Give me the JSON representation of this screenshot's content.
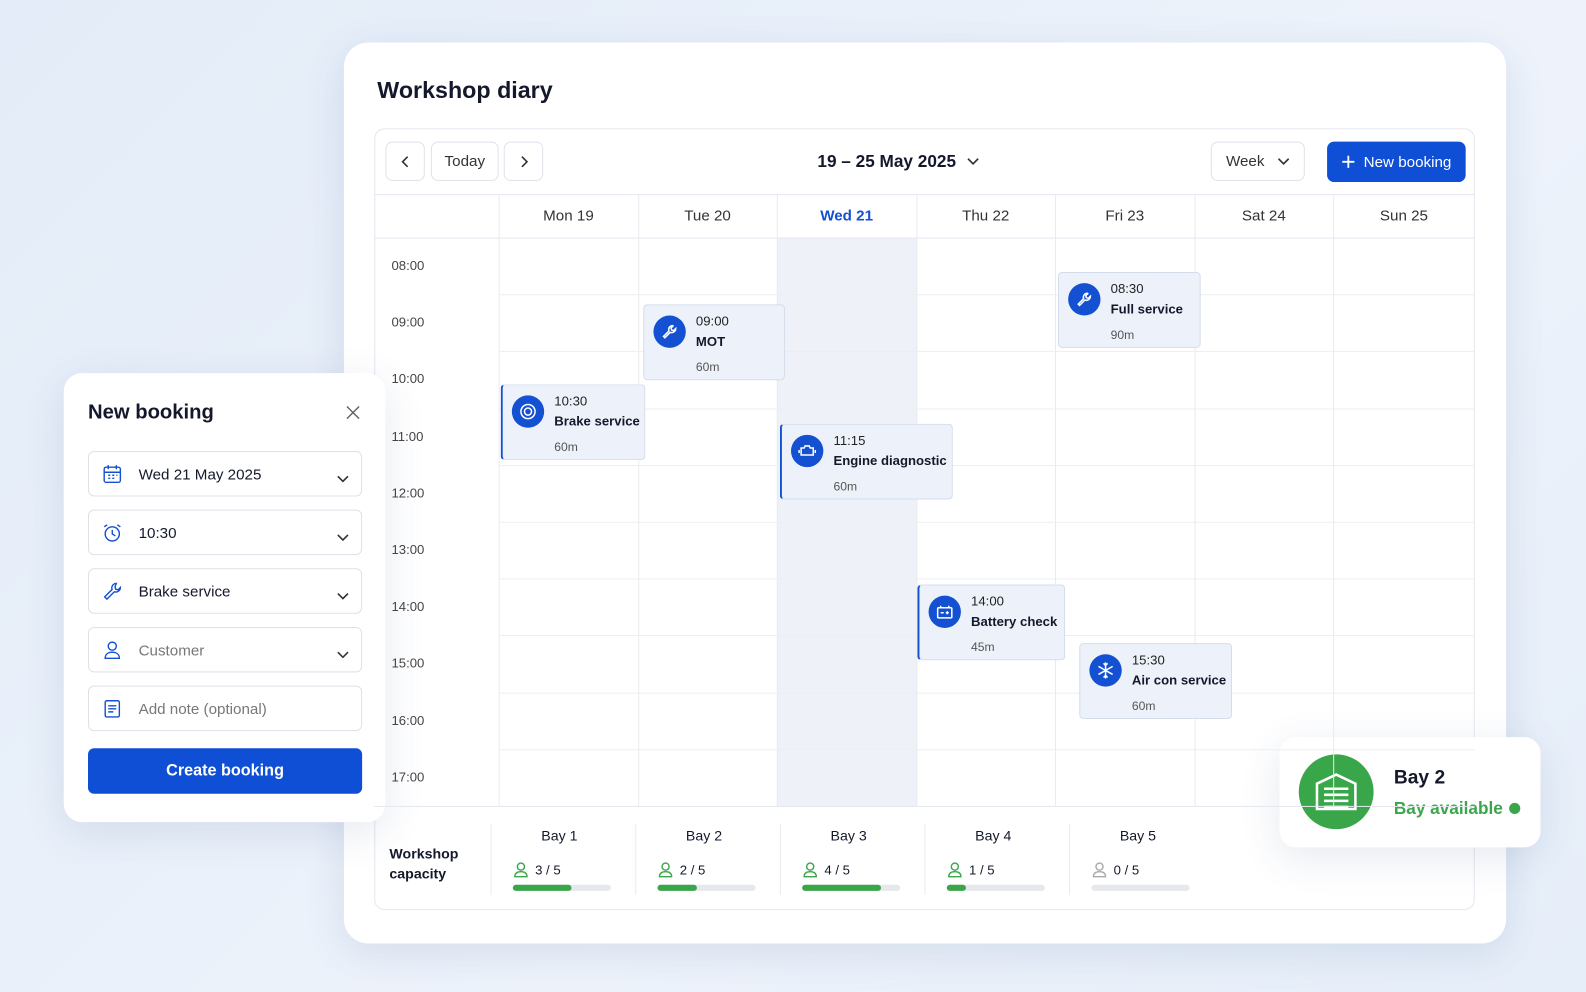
{
  "header": {
    "title": "Workshop diary"
  },
  "toolbar": {
    "today": "Today",
    "range": "19 – 25 May 2025",
    "view": "Week",
    "new_booking": "New booking"
  },
  "calendar": {
    "times": [
      "08:00",
      "09:00",
      "10:00",
      "11:00",
      "12:00",
      "13:00",
      "14:00",
      "15:00",
      "16:00",
      "17:00"
    ],
    "days": [
      {
        "label": "Mon 19",
        "events": [
          {
            "time": "10:30",
            "title": "Brake service",
            "duration": "60m"
          }
        ]
      },
      {
        "label": "Tue 20",
        "events": [
          {
            "time": "09:00",
            "title": "MOT",
            "duration": "60m"
          }
        ]
      },
      {
        "label": "Wed 21",
        "highlighted": true,
        "events": [
          {
            "time": "11:15",
            "title": "Engine diagnostic",
            "duration": "60m"
          }
        ]
      },
      {
        "label": "Thu 22",
        "events": [
          {
            "time": "14:00",
            "title": "Battery check",
            "duration": "45m"
          }
        ]
      },
      {
        "label": "Fri 23",
        "events": [
          {
            "time": "08:30",
            "title": "Full service",
            "duration": "90m"
          },
          {
            "time": "15:30",
            "title": "Air con service",
            "duration": "60m"
          }
        ]
      },
      {
        "label": "Sat 24",
        "events": []
      },
      {
        "label": "Sun 25",
        "events": []
      }
    ]
  },
  "capacity": {
    "label": "Workshop capacity",
    "bays": [
      {
        "name": "Bay 1",
        "used": 3,
        "total": 5,
        "label": "3 / 5"
      },
      {
        "name": "Bay 2",
        "used": 2,
        "total": 5,
        "label": "2 / 5"
      },
      {
        "name": "Bay 3",
        "used": 4,
        "total": 5,
        "label": "4 / 5"
      },
      {
        "name": "Bay 4",
        "used": 1,
        "total": 5,
        "label": "1 / 5"
      },
      {
        "name": "Bay 5",
        "used": 0,
        "total": 5,
        "label": "0 / 5"
      }
    ]
  },
  "form": {
    "title": "New booking",
    "fields": [
      "Wed 21 May 2025",
      "10:30",
      "Brake service",
      "Customer",
      "Add note (optional)"
    ],
    "button": "Create booking"
  },
  "status": {
    "title": "Bay 2",
    "text": "Bay available"
  }
}
